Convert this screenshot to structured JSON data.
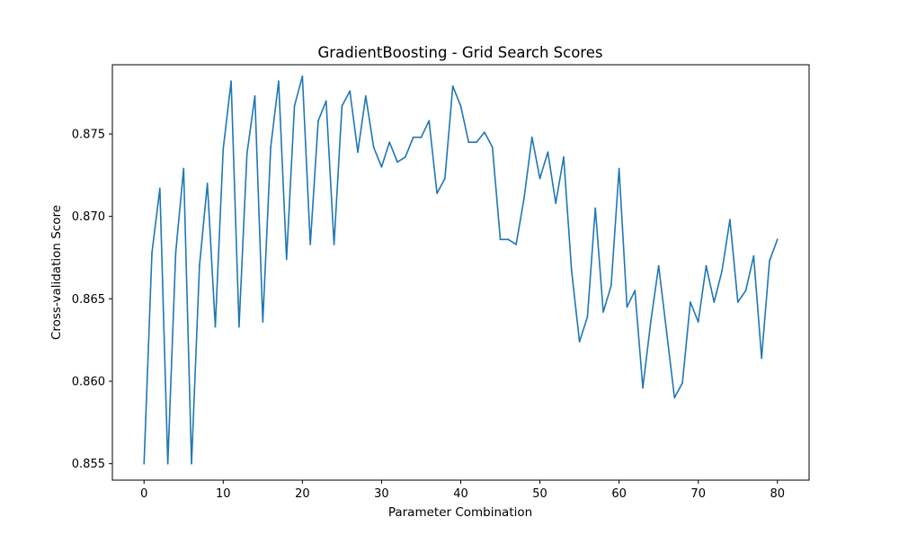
{
  "chart_data": {
    "type": "line",
    "title": "GradientBoosting - Grid Search Scores",
    "xlabel": "Parameter Combination",
    "ylabel": "Cross-validation Score",
    "xlim": [
      -4,
      84
    ],
    "ylim": [
      0.854,
      0.8792
    ],
    "xticks": [
      0,
      10,
      20,
      30,
      40,
      50,
      60,
      70,
      80
    ],
    "yticks": [
      0.855,
      0.86,
      0.865,
      0.87,
      0.875
    ],
    "ytick_labels": [
      "0.855",
      "0.860",
      "0.865",
      "0.870",
      "0.875"
    ],
    "grid": false,
    "line_color": "#1f77b4",
    "series": [
      {
        "x": [
          0,
          1,
          2,
          3,
          4,
          5,
          6,
          7,
          8,
          9,
          10,
          11,
          12,
          13,
          14,
          15,
          16,
          17,
          18,
          19,
          20,
          21,
          22,
          23,
          24,
          25,
          26,
          27,
          28,
          29,
          30,
          31,
          32,
          33,
          34,
          35,
          36,
          37,
          38,
          39,
          40,
          41,
          42,
          43,
          44,
          45,
          46,
          47,
          48,
          49,
          50,
          51,
          52,
          53,
          54,
          55,
          56,
          57,
          58,
          59,
          60,
          61,
          62,
          63,
          64,
          65,
          66,
          67,
          68,
          69,
          70,
          71,
          72,
          73,
          74,
          75,
          76,
          77,
          78,
          79,
          80
        ],
        "values": [
          0.855,
          0.8678,
          0.8717,
          0.855,
          0.8678,
          0.8729,
          0.855,
          0.867,
          0.872,
          0.8633,
          0.8741,
          0.8782,
          0.8633,
          0.8738,
          0.8773,
          0.8636,
          0.8742,
          0.8782,
          0.8674,
          0.8767,
          0.8785,
          0.8683,
          0.8758,
          0.877,
          0.8683,
          0.8767,
          0.8776,
          0.8739,
          0.8773,
          0.8742,
          0.873,
          0.8745,
          0.8733,
          0.8736,
          0.8748,
          0.8748,
          0.8758,
          0.8714,
          0.8723,
          0.8779,
          0.8767,
          0.8745,
          0.8745,
          0.8751,
          0.8742,
          0.8686,
          0.8686,
          0.8683,
          0.8711,
          0.8748,
          0.8723,
          0.8739,
          0.8708,
          0.8736,
          0.8667,
          0.8624,
          0.8639,
          0.8705,
          0.8642,
          0.8658,
          0.8729,
          0.8645,
          0.8655,
          0.8596,
          0.8636,
          0.867,
          0.863,
          0.859,
          0.8599,
          0.8648,
          0.8636,
          0.867,
          0.8648,
          0.8667,
          0.8698,
          0.8648,
          0.8655,
          0.8676,
          0.8614,
          0.8673,
          0.8686
        ]
      }
    ]
  }
}
